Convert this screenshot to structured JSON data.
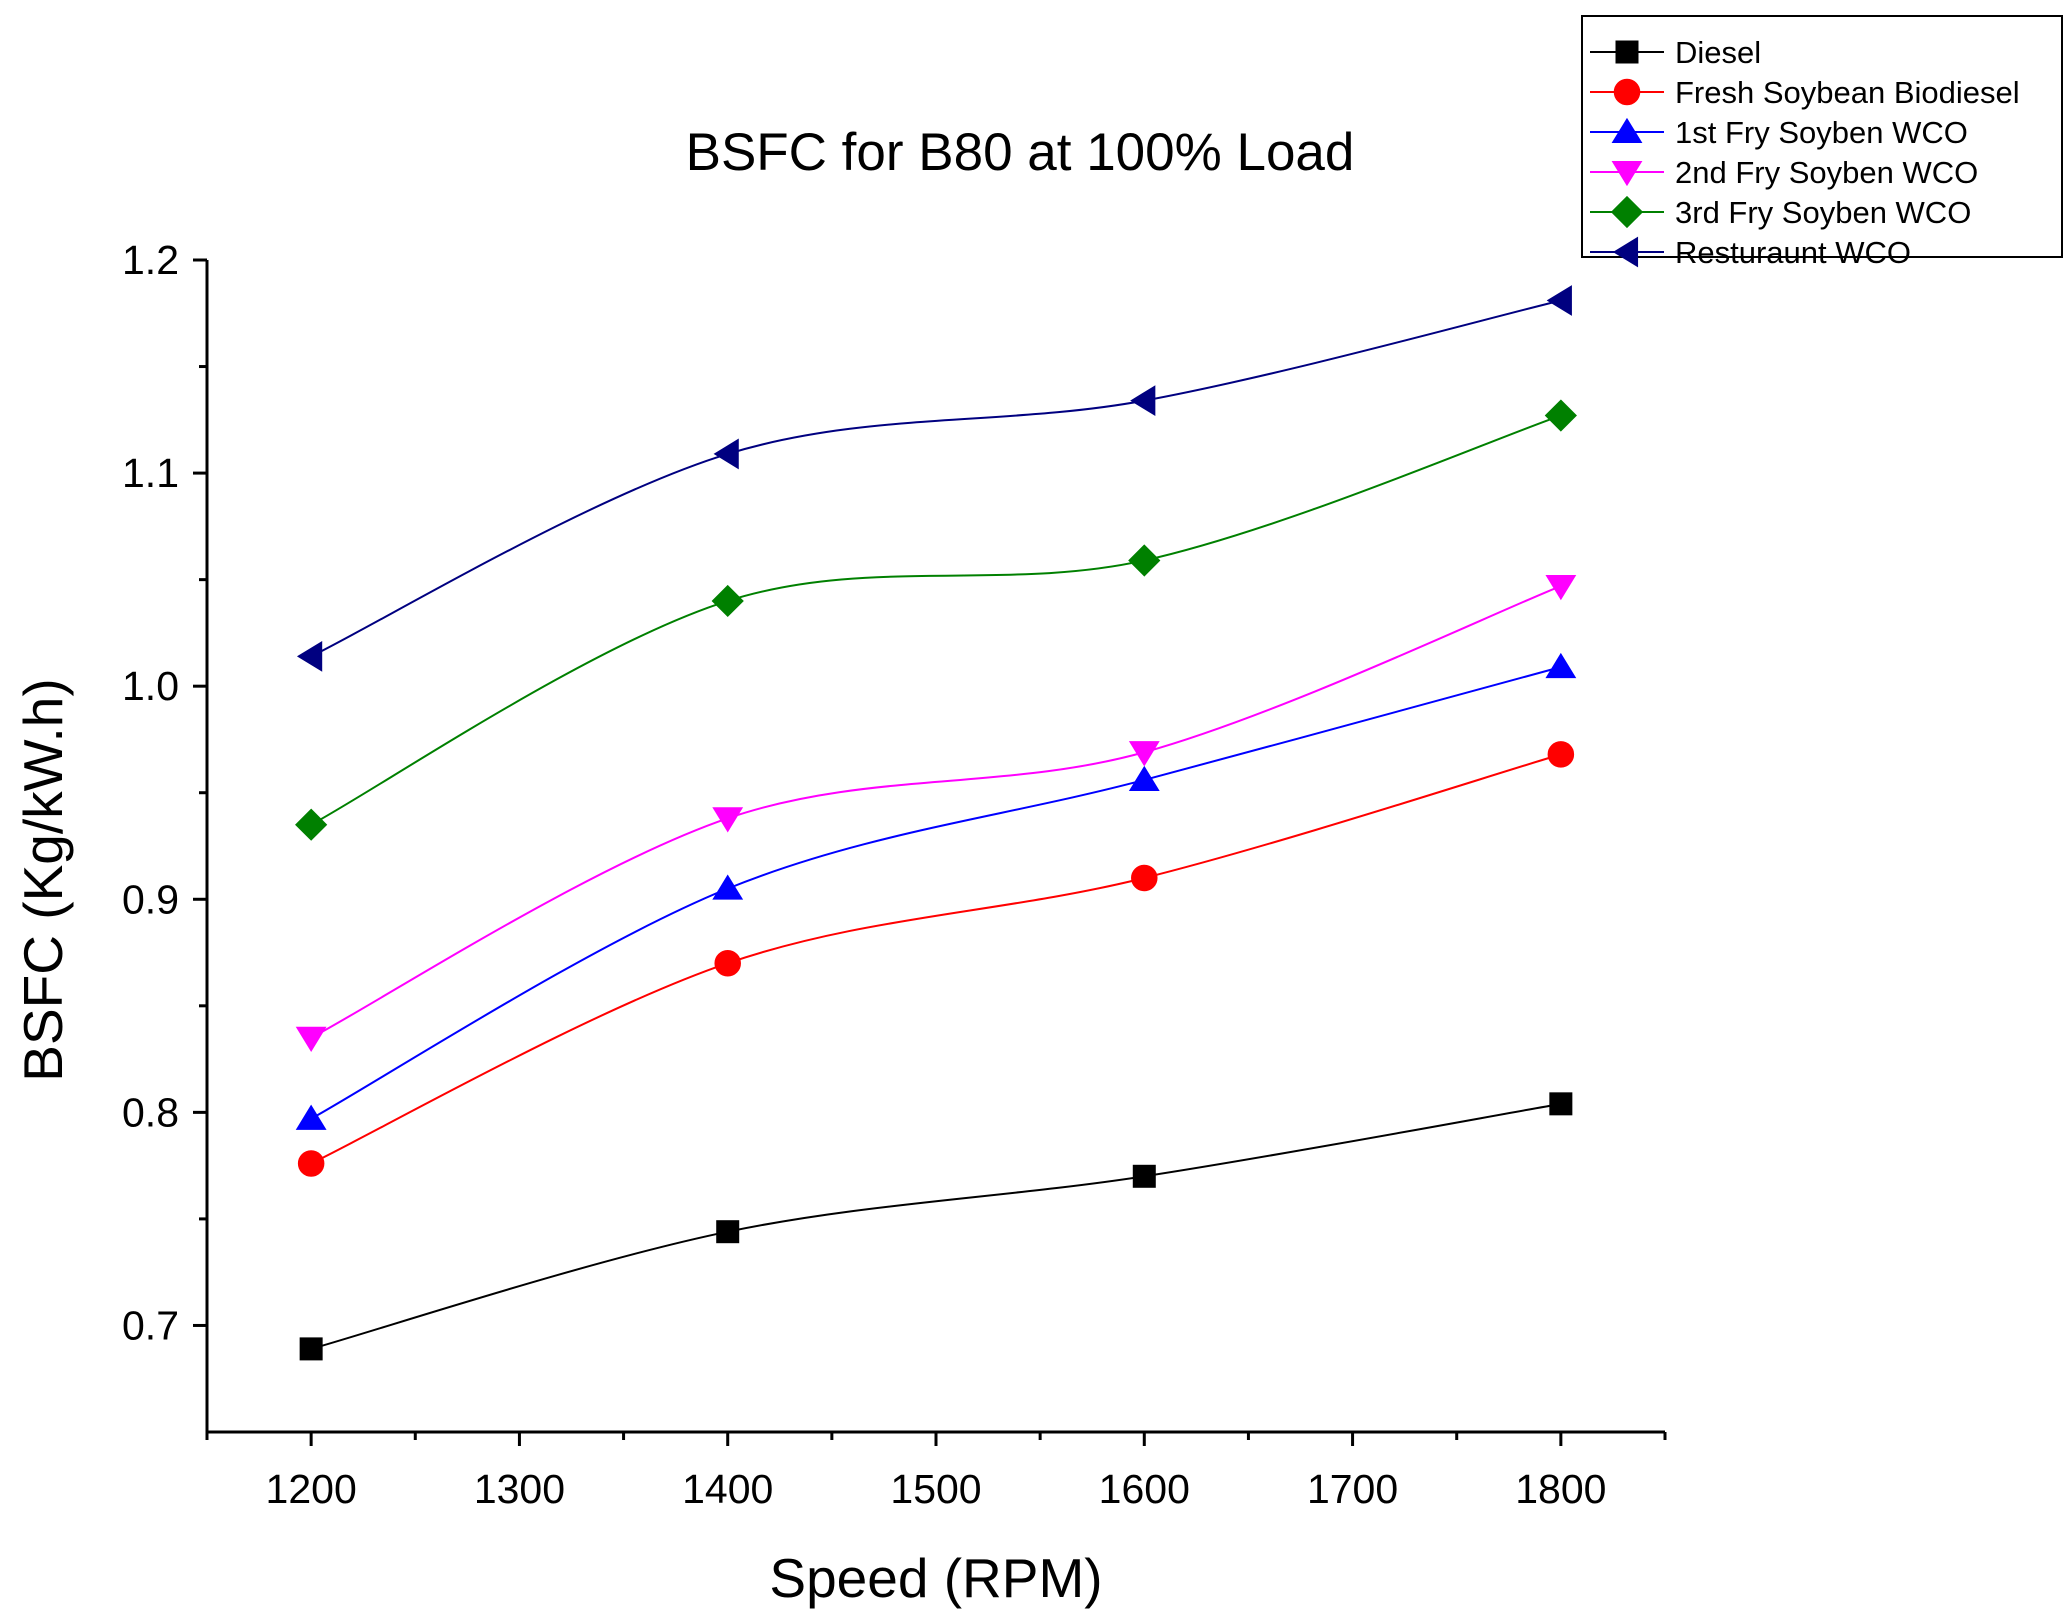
{
  "chart_data": {
    "type": "line",
    "title": "BSFC for B80 at 100% Load",
    "xlabel": "Speed (RPM)",
    "ylabel": "BSFC (Kg/kW.h)",
    "xlim": [
      1150,
      1850
    ],
    "ylim": [
      0.65,
      1.2
    ],
    "x_ticks": [
      1200,
      1300,
      1400,
      1500,
      1600,
      1700,
      1800
    ],
    "x_tick_labels": [
      "1200",
      "1300",
      "1400",
      "1500",
      "1600",
      "1700",
      "1800"
    ],
    "y_ticks": [
      0.7,
      0.8,
      0.9,
      1.0,
      1.1,
      1.2
    ],
    "y_tick_labels": [
      "0.7",
      "0.8",
      "0.9",
      "1.0",
      "1.1",
      "1.2"
    ],
    "grid": false,
    "legend_position": "top-right",
    "x": [
      1200,
      1400,
      1600,
      1800
    ],
    "series": [
      {
        "name": "Diesel",
        "color": "#000000",
        "marker": "square",
        "values": [
          0.689,
          0.744,
          0.77,
          0.804
        ]
      },
      {
        "name": "Fresh Soybean Biodiesel",
        "color": "#ff0000",
        "marker": "circle",
        "values": [
          0.776,
          0.87,
          0.91,
          0.968
        ]
      },
      {
        "name": "1st Fry Soyben WCO",
        "color": "#0000ff",
        "marker": "triangle-up",
        "values": [
          0.797,
          0.905,
          0.956,
          1.009
        ]
      },
      {
        "name": "2nd Fry Soyben WCO",
        "color": "#ff00ff",
        "marker": "triangle-down",
        "values": [
          0.835,
          0.938,
          0.969,
          1.047
        ]
      },
      {
        "name": "3rd Fry Soyben WCO",
        "color": "#008000",
        "marker": "diamond",
        "values": [
          0.935,
          1.04,
          1.059,
          1.127
        ]
      },
      {
        "name": "Resturaunt WCO",
        "color": "#000080",
        "marker": "triangle-left",
        "values": [
          1.014,
          1.109,
          1.134,
          1.181
        ]
      }
    ]
  }
}
